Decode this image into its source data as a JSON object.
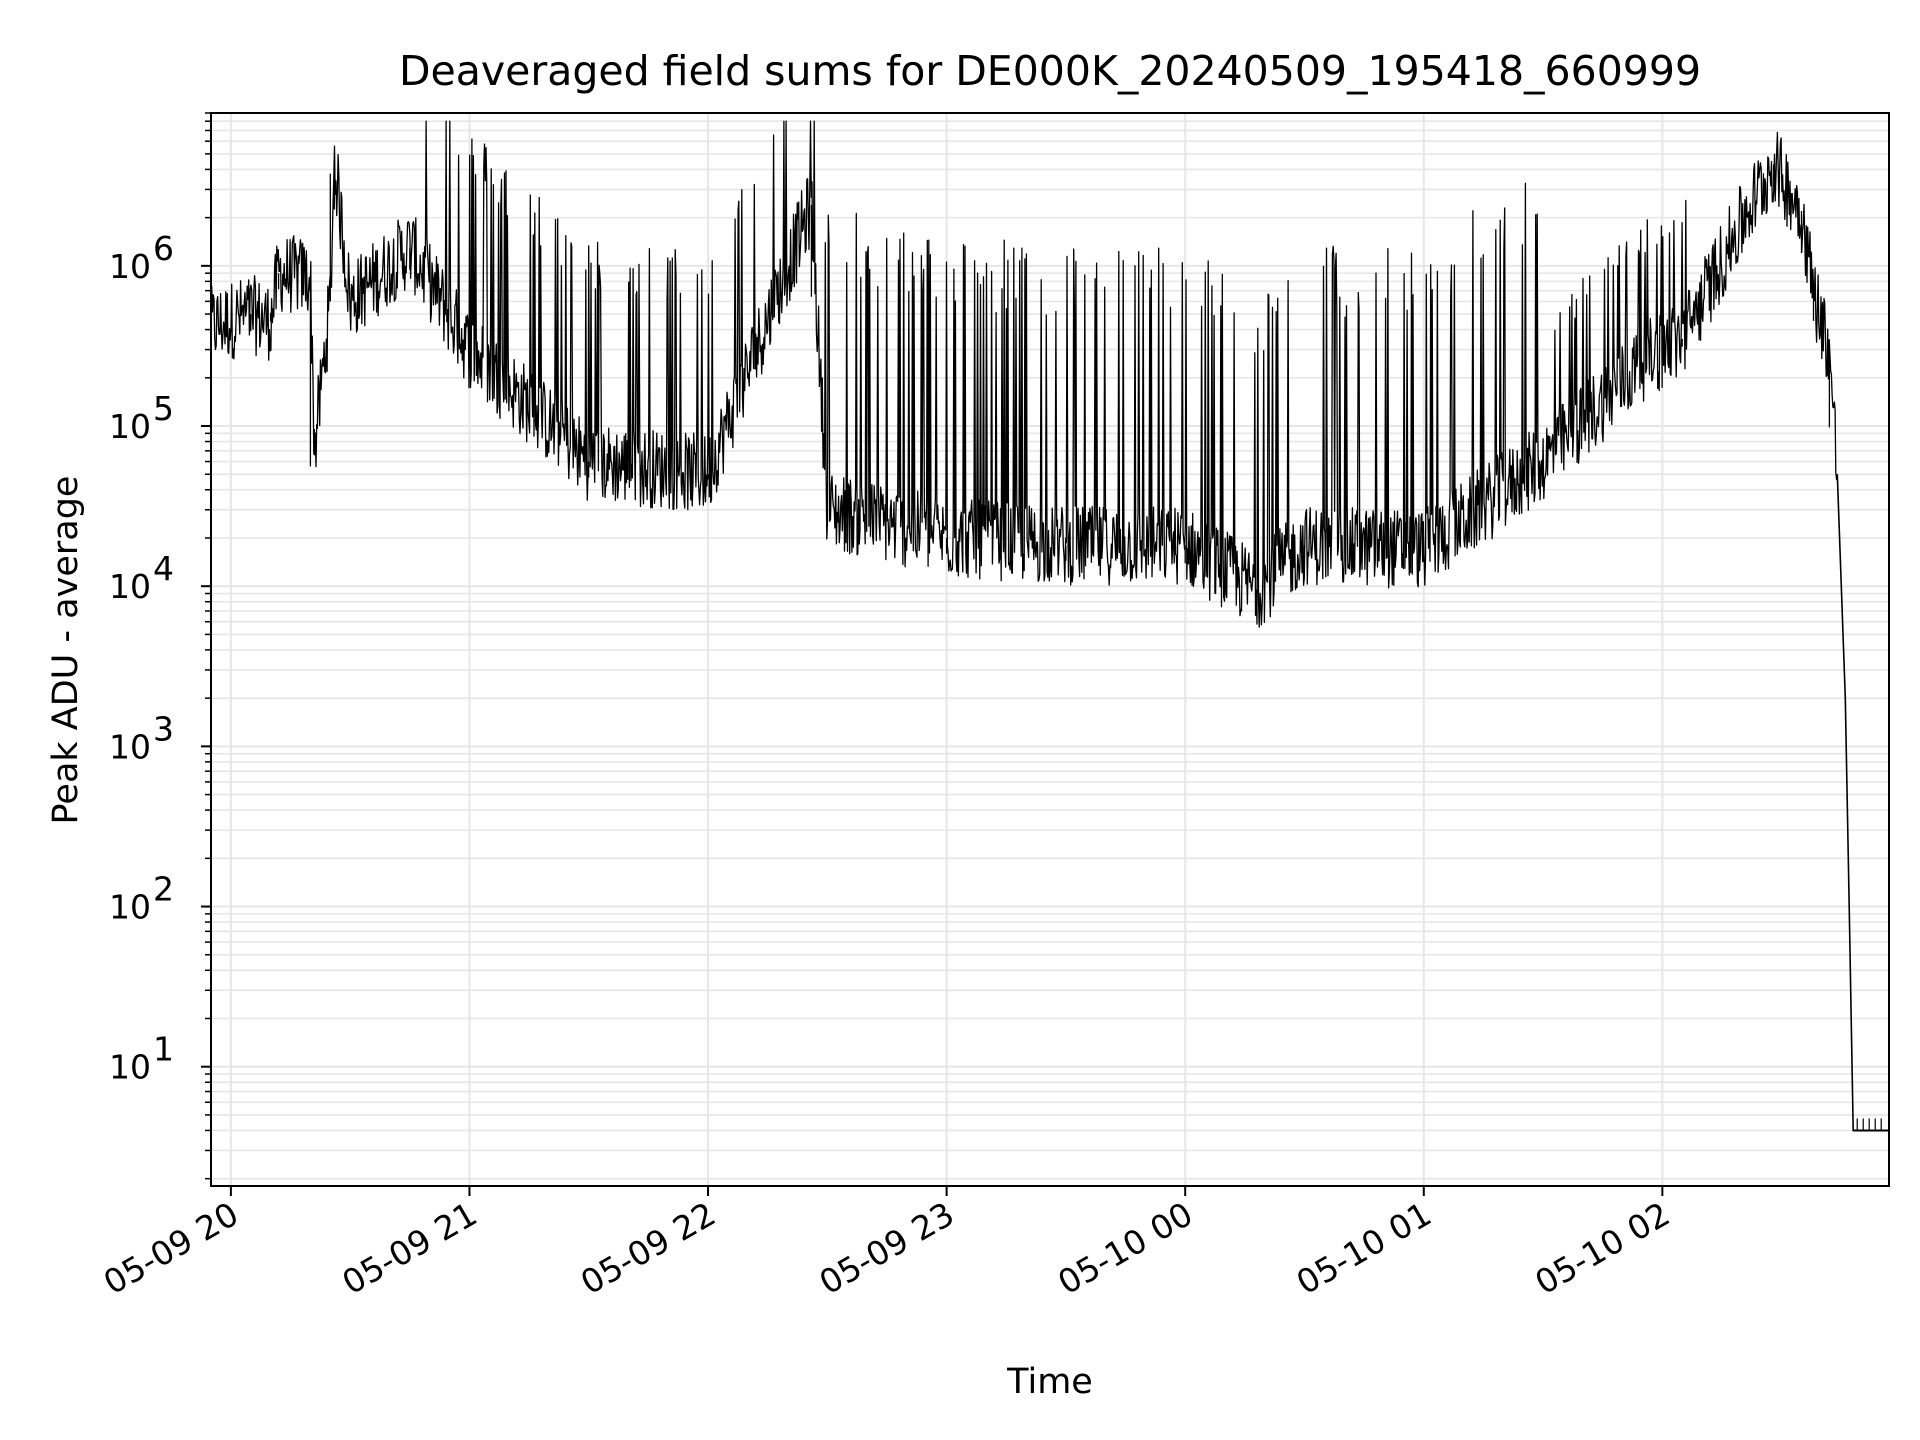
{
  "chart_data": {
    "type": "line",
    "title": "Deaveraged field sums for DE000K_20240509_195418_660999",
    "xlabel": "Time",
    "ylabel": "Peak ADU - average",
    "y_scale": "log",
    "ylim": [
      1.8,
      9000000
    ],
    "xlim": [
      "2024-05-09 19:55",
      "2024-05-10 02:57"
    ],
    "x_ticks": [
      "05-09 20",
      "05-09 21",
      "05-09 22",
      "05-09 23",
      "05-10 00",
      "05-10 01",
      "05-10 02"
    ],
    "y_ticks": [
      {
        "base": "10",
        "exp": "1"
      },
      {
        "base": "10",
        "exp": "2"
      },
      {
        "base": "10",
        "exp": "3"
      },
      {
        "base": "10",
        "exp": "4"
      },
      {
        "base": "10",
        "exp": "5"
      },
      {
        "base": "10",
        "exp": "6"
      }
    ],
    "grid": true,
    "series": [
      {
        "values": [
          [
            "2024-05-09 19:55",
            420000
          ],
          [
            "2024-05-09 20:05",
            500000
          ],
          [
            "2024-05-09 20:10",
            450000
          ],
          [
            "2024-05-09 20:12",
            900000
          ],
          [
            "2024-05-09 20:20",
            850000
          ],
          [
            "2024-05-09 20:21",
            70000
          ],
          [
            "2024-05-09 20:25",
            600000
          ],
          [
            "2024-05-09 20:26",
            4700000
          ],
          [
            "2024-05-09 20:30",
            600000
          ],
          [
            "2024-05-09 20:45",
            1300000
          ],
          [
            "2024-05-09 21:00",
            300000
          ],
          [
            "2024-05-09 21:30",
            60000
          ],
          [
            "2024-05-09 22:00",
            50000
          ],
          [
            "2024-05-09 22:26",
            2400000
          ],
          [
            "2024-05-09 22:30",
            30000
          ],
          [
            "2024-05-09 23:00",
            20000
          ],
          [
            "2024-05-09 23:30",
            18000
          ],
          [
            "2024-05-10 00:00",
            18000
          ],
          [
            "2024-05-10 00:18",
            9500
          ],
          [
            "2024-05-10 00:30",
            18000
          ],
          [
            "2024-05-10 01:00",
            17000
          ],
          [
            "2024-05-10 01:30",
            60000
          ],
          [
            "2024-05-10 01:55",
            250000
          ],
          [
            "2024-05-10 02:05",
            350000
          ],
          [
            "2024-05-10 02:21",
            2100000
          ],
          [
            "2024-05-10 02:28",
            4300000
          ],
          [
            "2024-05-10 02:35",
            2200000
          ],
          [
            "2024-05-10 02:38",
            700000
          ],
          [
            "2024-05-10 02:42",
            300000
          ],
          [
            "2024-05-10 02:44",
            50000
          ],
          [
            "2024-05-10 02:46",
            2000
          ],
          [
            "2024-05-10 02:47",
            100
          ],
          [
            "2024-05-10 02:48",
            4
          ],
          [
            "2024-05-10 02:57",
            4
          ]
        ]
      }
    ]
  }
}
